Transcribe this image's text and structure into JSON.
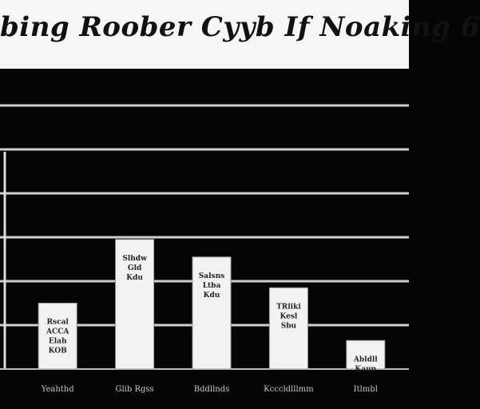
{
  "title": "bing Roober Cyyb If Noaking 6",
  "colors": {
    "background": "#050505",
    "title_band": "#f6f6f6",
    "grid": "#cfcfcf",
    "bar_fill": "#f2f2f2",
    "bar_stroke": "#9a9a9a",
    "tick_text": "#c8c8c8"
  },
  "chart_data": {
    "type": "bar",
    "categories": [
      "Yeahthd",
      "Glib Rgss",
      "Bddllnds",
      "Kcccldlllmm",
      "Itlmbl"
    ],
    "values": [
      1.5,
      2.95,
      2.55,
      1.85,
      0.65
    ],
    "bar_labels": [
      [
        "Rscal",
        "ACCA",
        "Elah",
        "KOB"
      ],
      [
        "Slhdw",
        "Gld",
        "Kdu"
      ],
      [
        "Salsns",
        "Ltba",
        "Kdu"
      ],
      [
        "TRiiki",
        "Kesl",
        "Sbu"
      ],
      [
        "Abldll",
        "Kaun"
      ]
    ],
    "ylim": [
      0,
      6
    ],
    "grid": true,
    "xlabel": "",
    "ylabel": ""
  }
}
